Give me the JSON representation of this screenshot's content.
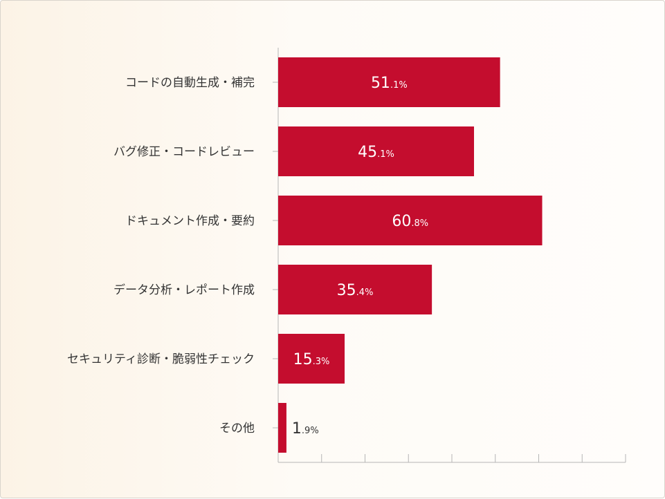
{
  "chart_data": {
    "type": "bar",
    "orientation": "horizontal",
    "categories": [
      "コードの自動生成・補完",
      "バグ修正・コードレビュー",
      "ドキュメント作成・要約",
      "データ分析・レポート作成",
      "セキュリティ診断・脆弱性チェック",
      "その他"
    ],
    "values": [
      51.1,
      45.1,
      60.8,
      35.4,
      15.3,
      1.9
    ],
    "unit": "%",
    "xlim": [
      0,
      80
    ],
    "grid": false,
    "bar_color": "#c40d2e"
  }
}
